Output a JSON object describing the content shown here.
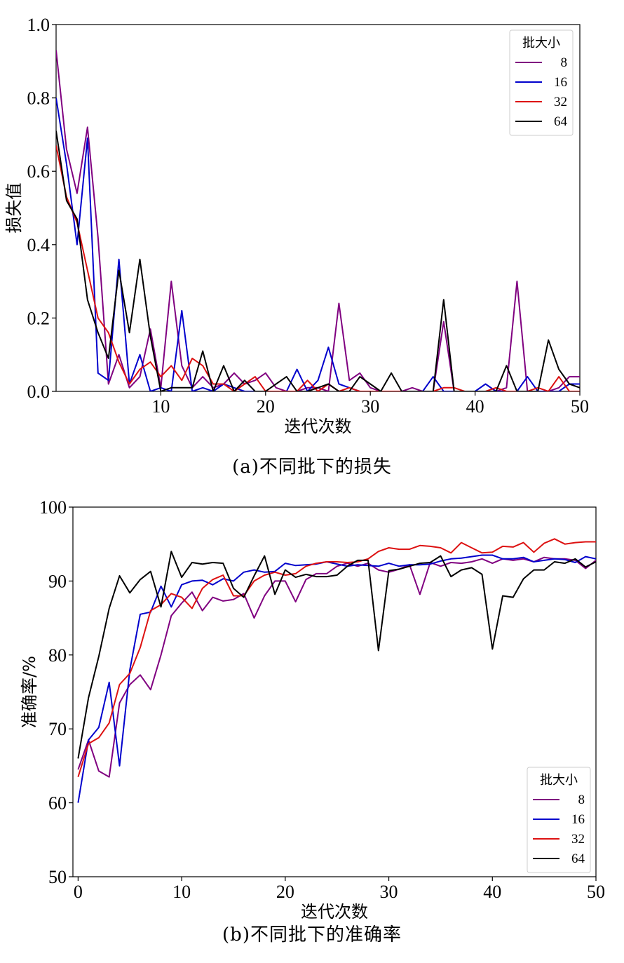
{
  "captions": {
    "a": "(a)不同批下的损失",
    "b": "(b)不同批下的准确率"
  },
  "chart_data": [
    {
      "type": "line",
      "title": "",
      "xlabel": "迭代次数",
      "ylabel": "损失值",
      "xlim": [
        0,
        50
      ],
      "ylim": [
        0.0,
        1.0
      ],
      "xticks": [
        10,
        20,
        30,
        40,
        50
      ],
      "yticks": [
        0.0,
        0.2,
        0.4,
        0.6,
        0.8,
        1.0
      ],
      "ytick_labels": [
        "0.0",
        "0.2",
        "0.4",
        "0.6",
        "0.8",
        "1.0"
      ],
      "grid": false,
      "legend": {
        "title": "批大小",
        "placement": "top-right"
      },
      "x": [
        0,
        1,
        2,
        3,
        4,
        5,
        6,
        7,
        8,
        9,
        10,
        11,
        12,
        13,
        14,
        15,
        16,
        17,
        18,
        19,
        20,
        21,
        22,
        23,
        24,
        25,
        26,
        27,
        28,
        29,
        30,
        31,
        32,
        33,
        34,
        35,
        36,
        37,
        38,
        39,
        40,
        41,
        42,
        43,
        44,
        45,
        46,
        47,
        48,
        49,
        50
      ],
      "series": [
        {
          "name": "8",
          "color": "#800080",
          "values": [
            0.93,
            0.66,
            0.54,
            0.72,
            0.42,
            0.02,
            0.1,
            0.01,
            0.04,
            0.17,
            0.01,
            0.3,
            0.07,
            0.01,
            0.04,
            0.01,
            0.02,
            0.05,
            0.02,
            0.03,
            0.05,
            0.01,
            0.0,
            0.0,
            0.01,
            0.01,
            0.0,
            0.24,
            0.03,
            0.05,
            0.01,
            0.0,
            0.0,
            0.0,
            0.01,
            0.0,
            0.0,
            0.19,
            0.0,
            0.0,
            0.0,
            0.0,
            0.0,
            0.01,
            0.3,
            0.0,
            0.0,
            0.0,
            0.01,
            0.04,
            0.04
          ]
        },
        {
          "name": "16",
          "color": "#0000cc",
          "values": [
            0.8,
            0.62,
            0.4,
            0.69,
            0.05,
            0.03,
            0.36,
            0.02,
            0.1,
            0.0,
            0.01,
            0.0,
            0.22,
            0.0,
            0.01,
            0.0,
            0.02,
            0.01,
            0.0,
            0.0,
            0.0,
            0.0,
            0.0,
            0.06,
            0.0,
            0.03,
            0.12,
            0.02,
            0.01,
            0.0,
            0.0,
            0.0,
            0.0,
            0.0,
            0.0,
            0.0,
            0.04,
            0.0,
            0.0,
            0.0,
            0.0,
            0.02,
            0.0,
            0.0,
            0.0,
            0.04,
            0.0,
            0.0,
            0.0,
            0.02,
            0.02
          ]
        },
        {
          "name": "32",
          "color": "#dd1111",
          "values": [
            0.67,
            0.53,
            0.46,
            0.33,
            0.2,
            0.16,
            0.08,
            0.02,
            0.06,
            0.08,
            0.04,
            0.07,
            0.03,
            0.09,
            0.07,
            0.02,
            0.02,
            0.0,
            0.02,
            0.04,
            0.0,
            0.0,
            0.0,
            0.0,
            0.03,
            0.0,
            0.02,
            0.0,
            0.01,
            0.0,
            0.0,
            0.0,
            0.0,
            0.0,
            0.0,
            0.0,
            0.0,
            0.01,
            0.01,
            0.0,
            0.0,
            0.0,
            0.01,
            0.0,
            0.0,
            0.0,
            0.01,
            0.0,
            0.04,
            0.0,
            0.0
          ]
        },
        {
          "name": "64",
          "color": "#000000",
          "values": [
            0.71,
            0.52,
            0.47,
            0.25,
            0.16,
            0.09,
            0.33,
            0.16,
            0.36,
            0.15,
            0.0,
            0.01,
            0.01,
            0.01,
            0.11,
            0.0,
            0.07,
            0.0,
            0.03,
            0.0,
            0.0,
            0.02,
            0.04,
            0.0,
            0.0,
            0.01,
            0.02,
            0.0,
            0.0,
            0.04,
            0.02,
            0.0,
            0.05,
            0.0,
            0.0,
            0.0,
            0.0,
            0.25,
            0.0,
            0.0,
            0.0,
            0.0,
            0.0,
            0.07,
            0.0,
            0.0,
            0.0,
            0.14,
            0.06,
            0.02,
            0.01
          ]
        }
      ]
    },
    {
      "type": "line",
      "title": "",
      "xlabel": "迭代次数",
      "ylabel": "准确率/%",
      "xlim": [
        -0.5,
        50
      ],
      "ylim": [
        50,
        100
      ],
      "xticks": [
        0,
        10,
        20,
        30,
        40,
        50
      ],
      "yticks": [
        50,
        60,
        70,
        80,
        90,
        100
      ],
      "ytick_labels": [
        "50",
        "60",
        "70",
        "80",
        "90",
        "100"
      ],
      "grid": false,
      "legend": {
        "title": "批大小",
        "placement": "bottom-right"
      },
      "x": [
        0,
        1,
        2,
        3,
        4,
        5,
        6,
        7,
        8,
        9,
        10,
        11,
        12,
        13,
        14,
        15,
        16,
        17,
        18,
        19,
        20,
        21,
        22,
        23,
        24,
        25,
        26,
        27,
        28,
        29,
        30,
        31,
        32,
        33,
        34,
        35,
        36,
        37,
        38,
        39,
        40,
        41,
        42,
        43,
        44,
        45,
        46,
        47,
        48,
        49,
        50
      ],
      "series": [
        {
          "name": "8",
          "color": "#800080",
          "values": [
            64.5,
            68.5,
            64.3,
            63.5,
            73.5,
            76.0,
            77.3,
            75.3,
            80.0,
            85.3,
            87.0,
            88.5,
            86.0,
            87.8,
            87.3,
            87.5,
            88.3,
            85.0,
            88.0,
            90.0,
            90.0,
            87.2,
            90.2,
            91.0,
            91.0,
            92.0,
            92.4,
            92.0,
            92.4,
            91.5,
            91.2,
            91.6,
            92.2,
            88.2,
            92.5,
            92.0,
            92.5,
            92.4,
            92.6,
            93.0,
            92.4,
            93.0,
            92.8,
            93.0,
            92.6,
            93.2,
            93.0,
            93.0,
            92.8,
            91.7,
            92.8
          ]
        },
        {
          "name": "16",
          "color": "#0000cc",
          "values": [
            60.0,
            68.5,
            70.2,
            76.3,
            65.0,
            78.0,
            85.5,
            85.8,
            89.3,
            86.5,
            89.5,
            90.0,
            90.1,
            89.5,
            90.3,
            90.0,
            91.2,
            91.5,
            91.2,
            91.3,
            92.4,
            92.1,
            92.2,
            92.3,
            92.6,
            92.3,
            92.0,
            92.2,
            92.1,
            92.0,
            92.4,
            92.0,
            92.2,
            92.2,
            92.3,
            92.7,
            93.0,
            93.1,
            93.3,
            93.5,
            93.5,
            93.0,
            93.0,
            93.2,
            92.6,
            92.8,
            93.0,
            92.9,
            92.5,
            93.3,
            93.0
          ]
        },
        {
          "name": "32",
          "color": "#dd1111",
          "values": [
            63.5,
            68.0,
            68.8,
            70.8,
            76.0,
            77.5,
            81.0,
            86.0,
            86.8,
            88.3,
            87.8,
            86.3,
            89.0,
            90.2,
            90.8,
            88.0,
            88.0,
            90.0,
            90.8,
            91.2,
            90.8,
            91.0,
            92.0,
            92.4,
            92.6,
            92.6,
            92.5,
            92.6,
            93.0,
            94.0,
            94.5,
            94.3,
            94.3,
            94.8,
            94.7,
            94.5,
            93.8,
            95.2,
            94.5,
            93.8,
            93.9,
            94.7,
            94.6,
            95.2,
            93.9,
            95.1,
            95.7,
            95.0,
            95.2,
            95.3,
            95.3
          ]
        },
        {
          "name": "64",
          "color": "#000000",
          "values": [
            66.0,
            74.2,
            79.8,
            86.3,
            90.7,
            88.4,
            90.2,
            91.3,
            86.5,
            94.0,
            90.5,
            92.5,
            92.3,
            92.5,
            92.4,
            89.0,
            87.8,
            90.7,
            93.4,
            88.2,
            91.5,
            90.5,
            90.9,
            90.6,
            90.6,
            90.8,
            92.0,
            92.8,
            92.8,
            80.6,
            91.4,
            91.6,
            92.0,
            92.4,
            92.5,
            93.4,
            90.6,
            91.5,
            91.8,
            90.9,
            80.8,
            88.0,
            87.8,
            90.3,
            91.5,
            91.5,
            92.6,
            92.4,
            93.0,
            91.9,
            92.6
          ]
        }
      ]
    }
  ]
}
